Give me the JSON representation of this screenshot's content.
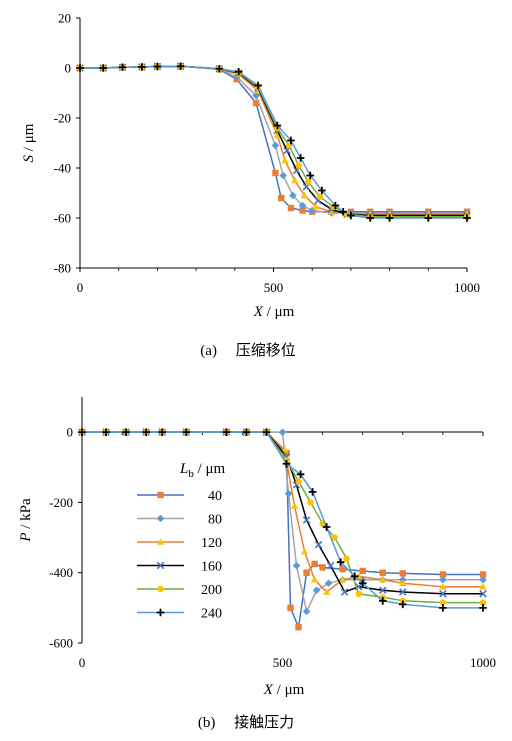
{
  "captions": {
    "a": "(a)　 压缩移位",
    "b": "(b)　 接触压力"
  },
  "colors": {
    "40": "#E8803A",
    "80": "#9CC3E6",
    "120": "#F4B814",
    "160": "#000000",
    "200": "#70AD47",
    "240": "#000000"
  },
  "chart_data": [
    {
      "type": "line",
      "ylabel_var": "S",
      "ylabel_unit": "μm",
      "xlabel_var": "X",
      "xlabel_unit": "μm",
      "xlim": [
        0,
        1000
      ],
      "ylim": [
        -80,
        20
      ],
      "xticks": [
        "0",
        "500",
        "1000"
      ],
      "yticks": [
        "20",
        "0",
        "-20",
        "-40",
        "-60",
        "-80"
      ],
      "series": [
        {
          "name": "40",
          "color": "#4472C4",
          "marker": "square",
          "markerColor": "#ED7D31",
          "x": [
            0,
            60,
            110,
            160,
            200,
            260,
            360,
            405,
            455,
            505,
            520,
            545,
            575,
            600,
            650,
            700,
            750,
            800,
            900,
            1000
          ],
          "y": [
            0,
            0,
            0.3,
            0.4,
            0.6,
            0.7,
            -0.5,
            -4.5,
            -14,
            -42,
            -52,
            -56,
            -57,
            -57.5,
            -57.5,
            -57.5,
            -57.5,
            -57.5,
            -57.5,
            -57.5
          ]
        },
        {
          "name": "80",
          "color": "#A5A5A5",
          "marker": "diamond",
          "markerColor": "#5B9BD5",
          "x": [
            0,
            60,
            110,
            160,
            200,
            260,
            360,
            405,
            455,
            505,
            525,
            550,
            575,
            600,
            650,
            700,
            750,
            800,
            900,
            1000
          ],
          "y": [
            0,
            0,
            0.3,
            0.4,
            0.6,
            0.7,
            -0.4,
            -3.5,
            -11,
            -31,
            -43,
            -51,
            -55,
            -57,
            -58,
            -58,
            -58,
            -58,
            -58,
            -58
          ]
        },
        {
          "name": "120",
          "color": "#ED7D31",
          "marker": "triangle",
          "markerColor": "#FFC000",
          "x": [
            0,
            60,
            110,
            160,
            200,
            260,
            360,
            410,
            460,
            510,
            530,
            555,
            580,
            610,
            650,
            700,
            750,
            800,
            900,
            1000
          ],
          "y": [
            0,
            0,
            0.3,
            0.4,
            0.6,
            0.7,
            -0.3,
            -2.5,
            -9,
            -27,
            -37,
            -45,
            -51,
            -55.5,
            -57.5,
            -58.5,
            -58.5,
            -58.5,
            -58.5,
            -58.5
          ]
        },
        {
          "name": "160",
          "color": "#000000",
          "marker": "x",
          "markerColor": "#4472C4",
          "x": [
            0,
            60,
            110,
            160,
            200,
            260,
            360,
            410,
            460,
            510,
            535,
            560,
            585,
            615,
            650,
            690,
            750,
            800,
            900,
            1000
          ],
          "y": [
            0,
            0,
            0.3,
            0.4,
            0.6,
            0.7,
            -0.3,
            -2,
            -8,
            -25,
            -33,
            -41,
            -47.5,
            -53,
            -56.5,
            -58.5,
            -59,
            -59,
            -59,
            -59
          ]
        },
        {
          "name": "200",
          "color": "#70AD47",
          "marker": "circle",
          "markerColor": "#FFC000",
          "x": [
            0,
            60,
            110,
            160,
            200,
            260,
            360,
            410,
            460,
            510,
            540,
            565,
            590,
            620,
            655,
            690,
            750,
            800,
            900,
            1000
          ],
          "y": [
            0,
            0,
            0.3,
            0.4,
            0.6,
            0.7,
            -0.3,
            -1.8,
            -7.5,
            -24,
            -31,
            -39,
            -45.5,
            -51.5,
            -55.5,
            -58.5,
            -59.5,
            -59.5,
            -59.5,
            -59.5
          ]
        },
        {
          "name": "240",
          "color": "#5B9BD5",
          "marker": "plus",
          "markerColor": "#000000",
          "x": [
            0,
            60,
            110,
            160,
            200,
            260,
            360,
            410,
            460,
            510,
            545,
            570,
            595,
            625,
            660,
            680,
            700,
            750,
            800,
            900,
            1000
          ],
          "y": [
            0,
            0,
            0.3,
            0.4,
            0.6,
            0.7,
            -0.3,
            -1.5,
            -7,
            -23,
            -29,
            -36,
            -43,
            -49,
            -55,
            -57.5,
            -59,
            -60,
            -60,
            -60,
            -60
          ]
        }
      ]
    },
    {
      "type": "line",
      "ylabel_var": "P",
      "ylabel_unit": "kPa",
      "xlabel_var": "X",
      "xlabel_unit": "μm",
      "xlim": [
        0,
        1000
      ],
      "ylim": [
        -600,
        100
      ],
      "xticks": [
        "0",
        "500",
        "1000"
      ],
      "yticks": [
        "0",
        "-200",
        "-400",
        "-600"
      ],
      "legend_title_var": "L",
      "legend_title_sub": "b",
      "legend_title_unit": "μm",
      "series": [
        {
          "name": "40",
          "color": "#4472C4",
          "marker": "square",
          "markerColor": "#ED7D31",
          "x": [
            0,
            60,
            110,
            160,
            200,
            260,
            360,
            410,
            460,
            510,
            520,
            540,
            560,
            580,
            600,
            650,
            700,
            750,
            800,
            900,
            1000
          ],
          "y": [
            0,
            0,
            0,
            0,
            0,
            0,
            0,
            0,
            0,
            -60,
            -500,
            -555,
            -400,
            -375,
            -385,
            -390,
            -395,
            -400,
            -402,
            -405,
            -405
          ]
        },
        {
          "name": "80",
          "color": "#A5A5A5",
          "marker": "diamond",
          "markerColor": "#5B9BD5",
          "x": [
            0,
            60,
            110,
            160,
            200,
            260,
            360,
            410,
            460,
            500,
            515,
            535,
            560,
            585,
            615,
            650,
            700,
            750,
            800,
            900,
            1000
          ],
          "y": [
            0,
            0,
            0,
            0,
            0,
            0,
            0,
            0,
            0,
            0,
            -175,
            -380,
            -510,
            -450,
            -430,
            -420,
            -420,
            -420,
            -420,
            -420,
            -420
          ]
        },
        {
          "name": "120",
          "color": "#ED7D31",
          "marker": "triangle",
          "markerColor": "#FFC000",
          "x": [
            0,
            60,
            110,
            160,
            200,
            260,
            360,
            410,
            460,
            505,
            530,
            555,
            580,
            610,
            650,
            690,
            750,
            800,
            900,
            1000
          ],
          "y": [
            0,
            0,
            0,
            0,
            0,
            0,
            0,
            0,
            0,
            -50,
            -210,
            -340,
            -420,
            -455,
            -420,
            -410,
            -420,
            -430,
            -440,
            -440
          ]
        },
        {
          "name": "160",
          "color": "#000000",
          "marker": "x",
          "markerColor": "#4472C4",
          "x": [
            0,
            60,
            110,
            160,
            200,
            260,
            360,
            410,
            460,
            510,
            535,
            560,
            590,
            620,
            655,
            690,
            750,
            800,
            900,
            1000
          ],
          "y": [
            0,
            0,
            0,
            0,
            0,
            0,
            0,
            0,
            0,
            -70,
            -150,
            -250,
            -320,
            -380,
            -455,
            -440,
            -450,
            -455,
            -460,
            -460
          ]
        },
        {
          "name": "200",
          "color": "#70AD47",
          "marker": "circle",
          "markerColor": "#FFC000",
          "x": [
            0,
            60,
            110,
            160,
            200,
            260,
            360,
            410,
            460,
            510,
            540,
            570,
            600,
            630,
            660,
            690,
            750,
            800,
            900,
            1000
          ],
          "y": [
            0,
            0,
            0,
            0,
            0,
            0,
            0,
            0,
            0,
            -80,
            -140,
            -200,
            -260,
            -300,
            -360,
            -460,
            -470,
            -480,
            -485,
            -485
          ]
        },
        {
          "name": "240",
          "color": "#5B9BD5",
          "marker": "plus",
          "markerColor": "#000000",
          "x": [
            0,
            60,
            110,
            160,
            200,
            260,
            360,
            410,
            460,
            510,
            545,
            575,
            610,
            645,
            680,
            700,
            750,
            800,
            900,
            1000
          ],
          "y": [
            0,
            0,
            0,
            0,
            0,
            0,
            0,
            0,
            0,
            -90,
            -120,
            -170,
            -270,
            -370,
            -410,
            -430,
            -480,
            -490,
            -500,
            -500
          ]
        }
      ]
    }
  ]
}
